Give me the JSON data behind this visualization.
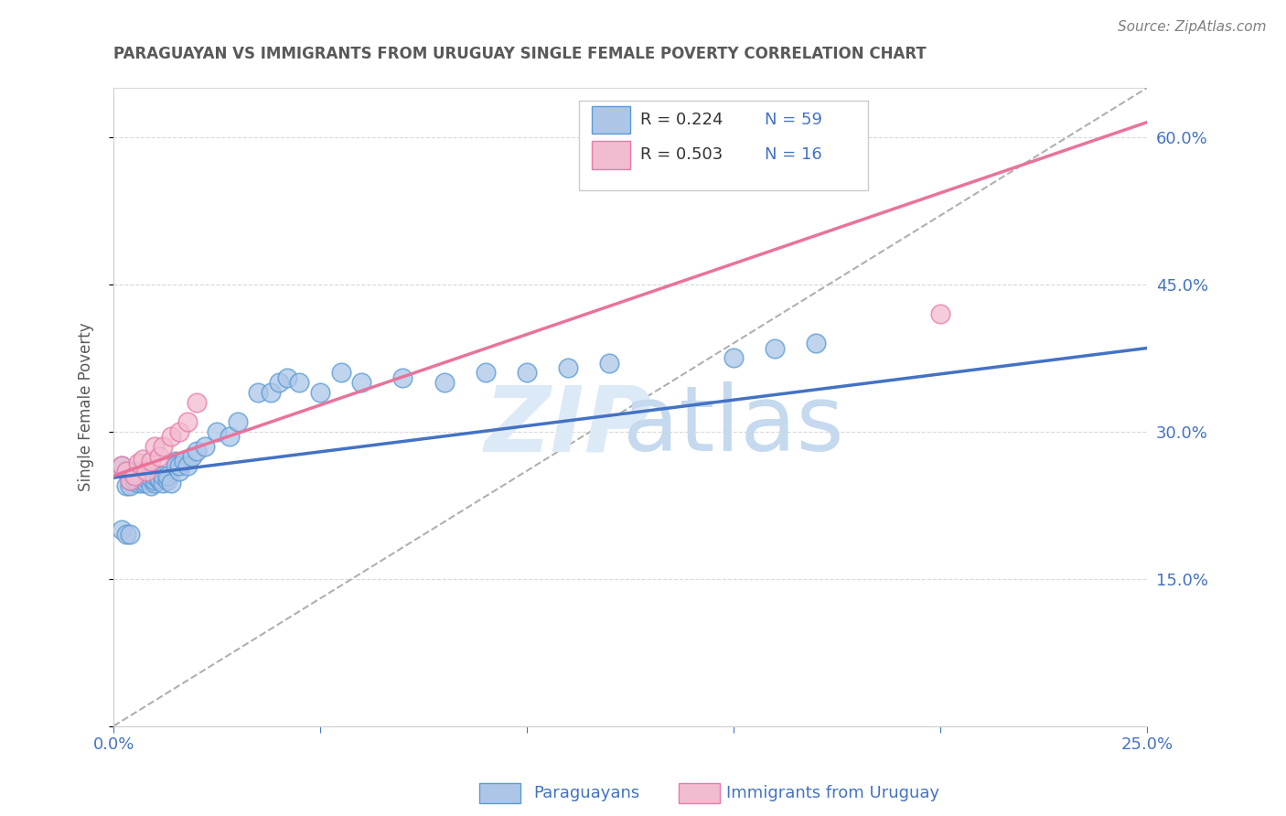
{
  "title": "PARAGUAYAN VS IMMIGRANTS FROM URUGUAY SINGLE FEMALE POVERTY CORRELATION CHART",
  "source": "Source: ZipAtlas.com",
  "ylabel": "Single Female Poverty",
  "xlim": [
    0.0,
    0.25
  ],
  "ylim": [
    0.0,
    0.65
  ],
  "x_ticks": [
    0.0,
    0.05,
    0.1,
    0.15,
    0.2,
    0.25
  ],
  "x_tick_labels": [
    "0.0%",
    "",
    "",
    "",
    "",
    "25.0%"
  ],
  "y_ticks": [
    0.0,
    0.15,
    0.3,
    0.45,
    0.6
  ],
  "y_tick_labels_right": [
    "",
    "15.0%",
    "30.0%",
    "45.0%",
    "60.0%"
  ],
  "legend_R1": "R = 0.224",
  "legend_N1": "N = 59",
  "legend_R2": "R = 0.503",
  "legend_N2": "N = 16",
  "color_paraguayan_fill": "#adc6e8",
  "color_paraguayan_edge": "#5b9bd5",
  "color_uruguay_fill": "#f2bcd0",
  "color_uruguay_edge": "#e87aaa",
  "color_line_blue": "#4472c4",
  "color_line_pink": "#e8739c",
  "color_text_blue": "#4472c4",
  "color_title": "#595959",
  "color_source": "#808080",
  "color_ylabel": "#595959",
  "color_grid": "#d9d9d9",
  "color_diag": "#b0b0b0",
  "watermark_zip_color": "#dceaf7",
  "watermark_atlas_color": "#c5d9ef",
  "paraguayan_x": [
    0.002,
    0.003,
    0.003,
    0.004,
    0.004,
    0.005,
    0.005,
    0.005,
    0.006,
    0.006,
    0.006,
    0.007,
    0.007,
    0.008,
    0.008,
    0.009,
    0.009,
    0.01,
    0.01,
    0.01,
    0.011,
    0.011,
    0.012,
    0.012,
    0.013,
    0.013,
    0.014,
    0.015,
    0.015,
    0.016,
    0.016,
    0.017,
    0.018,
    0.019,
    0.02,
    0.022,
    0.025,
    0.028,
    0.03,
    0.035,
    0.038,
    0.04,
    0.042,
    0.045,
    0.05,
    0.055,
    0.06,
    0.07,
    0.08,
    0.09,
    0.1,
    0.11,
    0.12,
    0.15,
    0.16,
    0.17,
    0.002,
    0.003,
    0.004
  ],
  "paraguayan_y": [
    0.265,
    0.245,
    0.26,
    0.245,
    0.25,
    0.25,
    0.255,
    0.26,
    0.25,
    0.248,
    0.255,
    0.248,
    0.25,
    0.248,
    0.252,
    0.245,
    0.252,
    0.248,
    0.25,
    0.255,
    0.25,
    0.252,
    0.248,
    0.255,
    0.25,
    0.255,
    0.248,
    0.27,
    0.265,
    0.26,
    0.265,
    0.27,
    0.265,
    0.275,
    0.28,
    0.285,
    0.3,
    0.295,
    0.31,
    0.34,
    0.34,
    0.35,
    0.355,
    0.35,
    0.34,
    0.36,
    0.35,
    0.355,
    0.35,
    0.36,
    0.36,
    0.365,
    0.37,
    0.375,
    0.385,
    0.39,
    0.2,
    0.195,
    0.195
  ],
  "uruguay_x": [
    0.002,
    0.003,
    0.004,
    0.005,
    0.006,
    0.007,
    0.008,
    0.009,
    0.01,
    0.011,
    0.012,
    0.014,
    0.016,
    0.018,
    0.02,
    0.2
  ],
  "uruguay_y": [
    0.265,
    0.26,
    0.25,
    0.255,
    0.268,
    0.272,
    0.26,
    0.27,
    0.285,
    0.275,
    0.285,
    0.295,
    0.3,
    0.31,
    0.33,
    0.42
  ],
  "blue_line_x0": 0.0,
  "blue_line_y0": 0.253,
  "blue_line_x1": 0.25,
  "blue_line_y1": 0.385,
  "pink_line_x0": 0.0,
  "pink_line_y0": 0.255,
  "pink_line_x1": 0.25,
  "pink_line_y1": 0.615
}
